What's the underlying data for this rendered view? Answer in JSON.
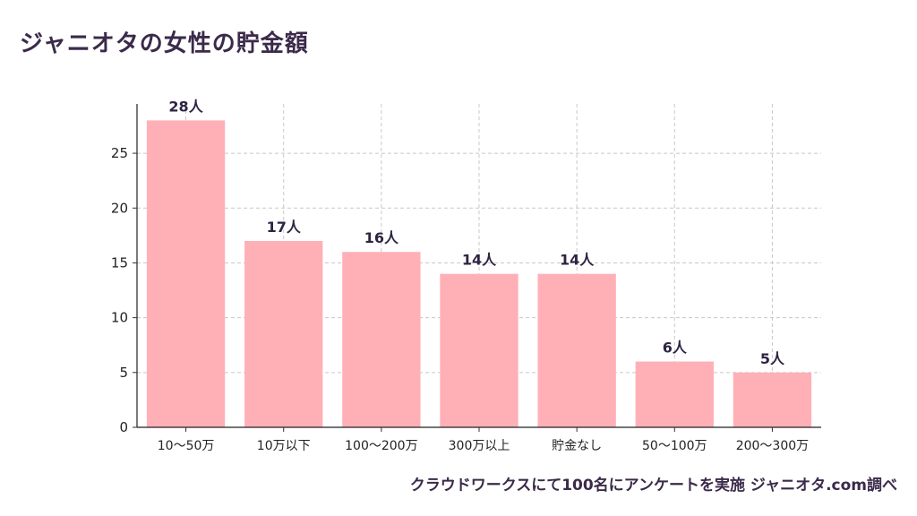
{
  "header": {
    "title": "ジャニオタの女性の貯金額"
  },
  "footer": {
    "source": "クラウドワークスにて100名にアンケートを実施  ジャニオタ.com調べ"
  },
  "chart_data": {
    "type": "bar",
    "categories": [
      "10〜50万",
      "10万以下",
      "100〜200万",
      "300万以上",
      "貯金なし",
      "50〜100万",
      "200〜300万"
    ],
    "values": [
      28,
      17,
      16,
      14,
      14,
      6,
      5
    ],
    "data_labels": [
      "28人",
      "17人",
      "16人",
      "14人",
      "14人",
      "6人",
      "5人"
    ],
    "ylim": [
      0,
      29.5
    ],
    "yticks": [
      0,
      5,
      10,
      15,
      20,
      25
    ],
    "grid": true,
    "bar_color": "#ffb0b7",
    "text_color": "#2e2442"
  }
}
